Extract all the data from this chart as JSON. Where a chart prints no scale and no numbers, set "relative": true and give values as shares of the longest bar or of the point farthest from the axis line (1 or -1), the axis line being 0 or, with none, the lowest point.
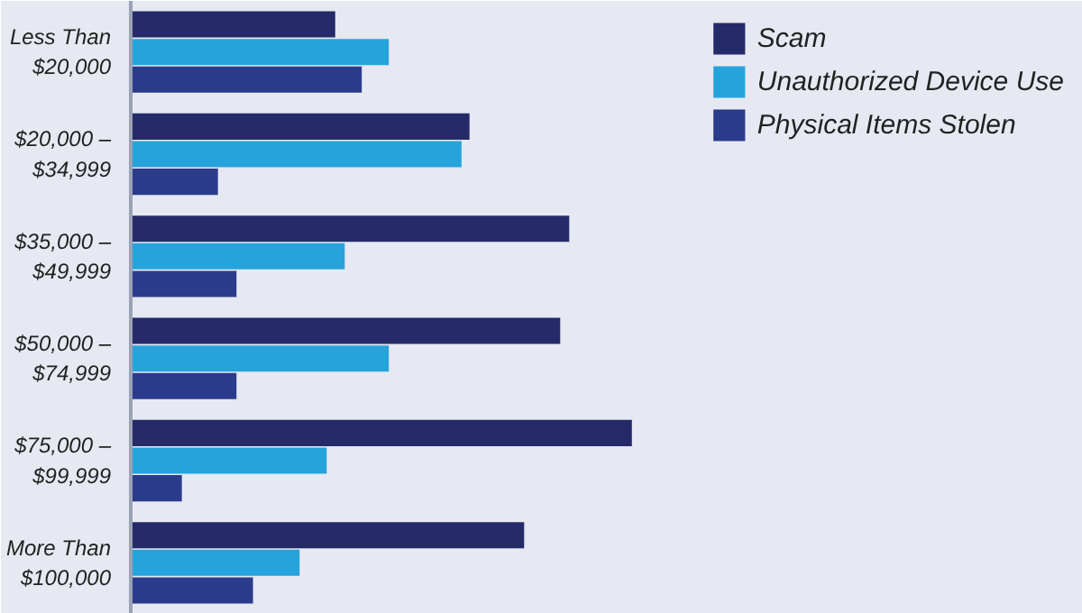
{
  "chart_data": {
    "type": "bar",
    "orientation": "horizontal",
    "relative": true,
    "legend": "top right",
    "grid": false,
    "categories": [
      "Less Than\n$20,000",
      "$20,000 –\n$34,999",
      "$35,000 –\n$49,999",
      "$50,000 –\n$74,999",
      "$75,000 –\n$99,999",
      "More Than\n$100,000"
    ],
    "series": [
      {
        "name": "Scam",
        "color": "#252a68",
        "values": [
          0.408,
          0.676,
          0.875,
          0.857,
          1,
          0.785
        ]
      },
      {
        "name": "Unauthorized Device Use",
        "color": "#27a3dc",
        "values": [
          0.515,
          0.66,
          0.427,
          0.515,
          0.391,
          0.337
        ]
      },
      {
        "name": "Physical Items Stolen",
        "color": "#2b3b8c",
        "values": [
          0.461,
          0.174,
          0.211,
          0.211,
          0.102,
          0.244
        ]
      }
    ]
  }
}
